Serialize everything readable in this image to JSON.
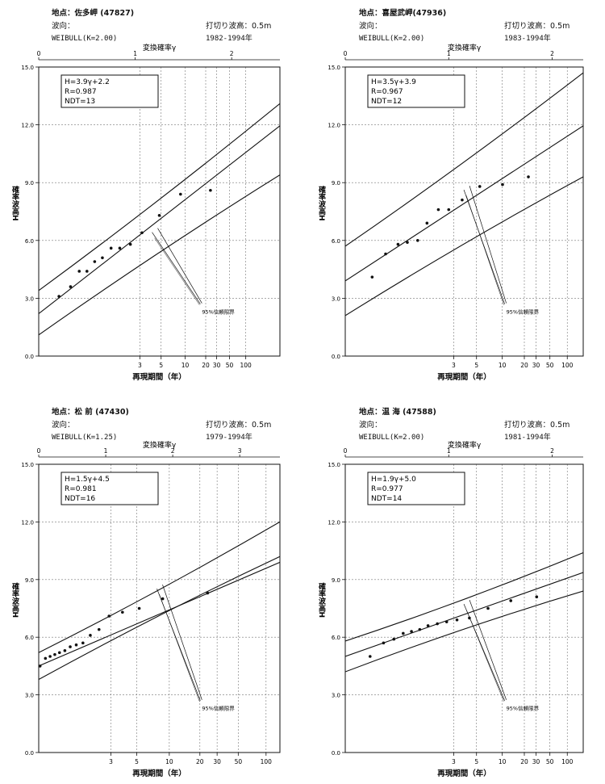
{
  "ui": {
    "ci_label": "95%信頼限界",
    "axis_prefix": ""
  },
  "chart_data": [
    {
      "type": "line",
      "location_label": "地点：佐多岬 (47827)",
      "wave_label": "波向：",
      "weibull": "WEIBULL(K=2.00)",
      "cutoff": "打切り波高：0.5m",
      "period": "1982-1994年",
      "top_axis_title": "変換確率γ",
      "top_ticks": [
        "0",
        "1",
        "2"
      ],
      "top_tick_values": [
        0,
        1,
        2
      ],
      "ylabel": "確率波高H",
      "xlabel": "再現期間（年）",
      "y_tick_labels": [
        "0.0",
        "3.0",
        "6.0",
        "9.0",
        "12.0",
        "15.0"
      ],
      "y_ticks": [
        0,
        3,
        6,
        9,
        12,
        15
      ],
      "ylim": [
        0,
        15
      ],
      "gamma_range": [
        0,
        2.5
      ],
      "x_tick_labels": [
        "3",
        "5",
        "10",
        "20",
        "30",
        "50",
        "100"
      ],
      "x_ticks": [
        3,
        5,
        10,
        20,
        30,
        50,
        100
      ],
      "weibull_k": 2.0,
      "equation": "H=3.9γ+2.2",
      "r": "R=0.987",
      "ndt": "NDT=13",
      "fit": {
        "slope": 3.9,
        "intercept": 2.2
      },
      "ci_lower": [
        [
          0,
          1.1
        ],
        [
          2.5,
          9.4
        ]
      ],
      "ci_upper": [
        [
          0,
          3.4
        ],
        [
          2.5,
          13.1
        ]
      ],
      "points": [
        [
          0.21,
          3.1
        ],
        [
          0.33,
          3.6
        ],
        [
          0.42,
          4.4
        ],
        [
          0.5,
          4.4
        ],
        [
          0.58,
          4.9
        ],
        [
          0.66,
          5.1
        ],
        [
          0.75,
          5.6
        ],
        [
          0.84,
          5.6
        ],
        [
          0.95,
          5.8
        ],
        [
          1.07,
          6.4
        ],
        [
          1.25,
          7.3
        ],
        [
          1.47,
          8.4
        ],
        [
          1.78,
          8.6
        ]
      ],
      "ci_annotation_start": [
        1.2,
        6.3
      ]
    },
    {
      "type": "line",
      "location_label": "地点：喜屋武岬(47936)",
      "wave_label": "波向：",
      "weibull": "WEIBULL(K=2.00)",
      "cutoff": "打切り波高：0.5m",
      "period": "1983-1994年",
      "top_axis_title": "変換確率γ",
      "top_ticks": [
        "0",
        "1",
        "2"
      ],
      "top_tick_values": [
        0,
        1,
        2
      ],
      "ylabel": "確率波高H",
      "xlabel": "再現期間（年）",
      "y_tick_labels": [
        "0.0",
        "3.0",
        "6.0",
        "9.0",
        "12.0",
        "15.0"
      ],
      "y_ticks": [
        0,
        3,
        6,
        9,
        12,
        15
      ],
      "ylim": [
        0,
        15
      ],
      "gamma_range": [
        0,
        2.3
      ],
      "x_tick_labels": [
        "3",
        "5",
        "10",
        "20",
        "30",
        "50",
        "100"
      ],
      "x_ticks": [
        3,
        5,
        10,
        20,
        30,
        50,
        100
      ],
      "weibull_k": 2.0,
      "equation": "H=3.5γ+3.9",
      "r": "R=0.967",
      "ndt": "NDT=12",
      "fit": {
        "slope": 3.5,
        "intercept": 3.9
      },
      "ci_lower": [
        [
          0,
          2.1
        ],
        [
          2.3,
          9.3
        ]
      ],
      "ci_upper": [
        [
          0,
          5.7
        ],
        [
          2.3,
          14.7
        ]
      ],
      "points": [
        [
          0.26,
          4.1
        ],
        [
          0.39,
          5.3
        ],
        [
          0.51,
          5.8
        ],
        [
          0.6,
          5.9
        ],
        [
          0.7,
          6.0
        ],
        [
          0.79,
          6.9
        ],
        [
          0.9,
          7.6
        ],
        [
          1.0,
          7.6
        ],
        [
          1.13,
          8.1
        ],
        [
          1.3,
          8.8
        ],
        [
          1.52,
          8.9
        ],
        [
          1.77,
          9.3
        ]
      ],
      "ci_annotation_start": [
        1.17,
        8.5
      ]
    },
    {
      "type": "line",
      "location_label": "地点：松 前 (47430)",
      "wave_label": "波向：",
      "weibull": "WEIBULL(K=1.25)",
      "cutoff": "打切り波高：0.5m",
      "period": "1979-1994年",
      "top_axis_title": "変換確率γ",
      "top_ticks": [
        "0",
        "1",
        "2",
        "3"
      ],
      "top_tick_values": [
        0,
        1,
        2,
        3
      ],
      "ylabel": "確率波高H",
      "xlabel": "再現期間（年）",
      "y_tick_labels": [
        "0.0",
        "3.0",
        "6.0",
        "9.0",
        "12.0",
        "15.0"
      ],
      "y_ticks": [
        0,
        3,
        6,
        9,
        12,
        15
      ],
      "ylim": [
        0,
        15
      ],
      "gamma_range": [
        0,
        3.6
      ],
      "x_tick_labels": [
        "3",
        "5",
        "10",
        "20",
        "30",
        "50",
        "100"
      ],
      "x_ticks": [
        3,
        5,
        10,
        20,
        30,
        50,
        100
      ],
      "weibull_k": 1.25,
      "equation": "H=1.5γ+4.5",
      "r": "R=0.981",
      "ndt": "NDT=16",
      "fit": {
        "slope": 1.5,
        "intercept": 4.5
      },
      "ci_lower": [
        [
          0,
          3.8
        ],
        [
          3.6,
          10.2
        ]
      ],
      "ci_upper": [
        [
          0,
          5.2
        ],
        [
          3.6,
          12.0
        ]
      ],
      "points": [
        [
          0.02,
          4.5
        ],
        [
          0.1,
          4.9
        ],
        [
          0.17,
          5.0
        ],
        [
          0.24,
          5.1
        ],
        [
          0.31,
          5.2
        ],
        [
          0.39,
          5.3
        ],
        [
          0.47,
          5.5
        ],
        [
          0.56,
          5.6
        ],
        [
          0.66,
          5.7
        ],
        [
          0.77,
          6.1
        ],
        [
          0.9,
          6.4
        ],
        [
          1.05,
          7.1
        ],
        [
          1.25,
          7.3
        ],
        [
          1.5,
          7.5
        ],
        [
          1.85,
          8.0
        ],
        [
          2.52,
          8.3
        ]
      ],
      "ci_annotation_start": [
        1.8,
        8.4
      ]
    },
    {
      "type": "line",
      "location_label": "地点：温 海 (47588)",
      "wave_label": "波向：",
      "weibull": "WEIBULL(K=2.00)",
      "cutoff": "打切り波高：0.5m",
      "period": "1981-1994年",
      "top_axis_title": "変換確率γ",
      "top_ticks": [
        "0",
        "1",
        "2"
      ],
      "top_tick_values": [
        0,
        1,
        2
      ],
      "ylabel": "確率波高H",
      "xlabel": "再現期間（年）",
      "y_tick_labels": [
        "0.0",
        "3.0",
        "6.0",
        "9.0",
        "12.0",
        "15.0"
      ],
      "y_ticks": [
        0,
        3,
        6,
        9,
        12,
        15
      ],
      "ylim": [
        0,
        15
      ],
      "gamma_range": [
        0,
        2.3
      ],
      "x_tick_labels": [
        "3",
        "5",
        "10",
        "20",
        "30",
        "50",
        "100"
      ],
      "x_ticks": [
        3,
        5,
        10,
        20,
        30,
        50,
        100
      ],
      "weibull_k": 2.0,
      "equation": "H=1.9γ+5.0",
      "r": "R=0.977",
      "ndt": "NDT=14",
      "fit": {
        "slope": 1.9,
        "intercept": 5.0
      },
      "ci_lower": [
        [
          0,
          4.2
        ],
        [
          2.3,
          8.4
        ]
      ],
      "ci_upper": [
        [
          0,
          5.8
        ],
        [
          2.3,
          10.4
        ]
      ],
      "points": [
        [
          0.24,
          5.0
        ],
        [
          0.37,
          5.7
        ],
        [
          0.47,
          5.9
        ],
        [
          0.56,
          6.2
        ],
        [
          0.64,
          6.3
        ],
        [
          0.72,
          6.4
        ],
        [
          0.8,
          6.6
        ],
        [
          0.89,
          6.7
        ],
        [
          0.98,
          6.8
        ],
        [
          1.08,
          6.9
        ],
        [
          1.2,
          7.0
        ],
        [
          1.38,
          7.5
        ],
        [
          1.6,
          7.9
        ],
        [
          1.85,
          8.1
        ]
      ],
      "ci_annotation_start": [
        1.17,
        7.6
      ]
    }
  ]
}
